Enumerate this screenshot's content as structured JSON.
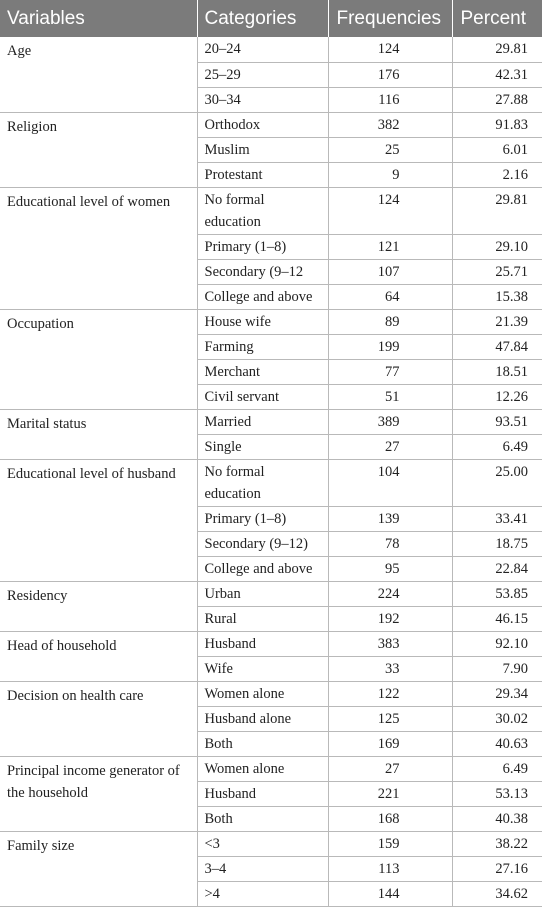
{
  "headers": [
    "Variables",
    "Categories",
    "Frequencies",
    "Percent"
  ],
  "groups": [
    {
      "variable": "Age",
      "rows": [
        {
          "category": "20–24",
          "frequency": "124",
          "percent": "29.81"
        },
        {
          "category": "25–29",
          "frequency": "176",
          "percent": "42.31"
        },
        {
          "category": "30–34",
          "frequency": "116",
          "percent": "27.88"
        }
      ]
    },
    {
      "variable": "Religion",
      "rows": [
        {
          "category": "Orthodox",
          "frequency": "382",
          "percent": "91.83"
        },
        {
          "category": "Muslim",
          "frequency": "25",
          "percent": "6.01"
        },
        {
          "category": "Protestant",
          "frequency": "9",
          "percent": "2.16"
        }
      ]
    },
    {
      "variable": "Educational level of women",
      "rows": [
        {
          "category": "No formal education",
          "frequency": "124",
          "percent": "29.81"
        },
        {
          "category": "Primary (1–8)",
          "frequency": "121",
          "percent": "29.10"
        },
        {
          "category": "Secondary (9–12",
          "frequency": "107",
          "percent": "25.71"
        },
        {
          "category": "College and above",
          "frequency": "64",
          "percent": "15.38"
        }
      ]
    },
    {
      "variable": "Occupation",
      "rows": [
        {
          "category": "House wife",
          "frequency": "89",
          "percent": "21.39"
        },
        {
          "category": "Farming",
          "frequency": "199",
          "percent": "47.84"
        },
        {
          "category": "Merchant",
          "frequency": "77",
          "percent": "18.51"
        },
        {
          "category": "Civil servant",
          "frequency": "51",
          "percent": "12.26"
        }
      ]
    },
    {
      "variable": "Marital status",
      "rows": [
        {
          "category": "Married",
          "frequency": "389",
          "percent": "93.51"
        },
        {
          "category": "Single",
          "frequency": "27",
          "percent": "6.49"
        }
      ]
    },
    {
      "variable": "Educational level of husband",
      "rows": [
        {
          "category": "No formal education",
          "frequency": "104",
          "percent": "25.00"
        },
        {
          "category": "Primary (1–8)",
          "frequency": "139",
          "percent": "33.41"
        },
        {
          "category": "Secondary (9–12)",
          "frequency": "78",
          "percent": "18.75"
        },
        {
          "category": "College and above",
          "frequency": "95",
          "percent": "22.84"
        }
      ]
    },
    {
      "variable": "Residency",
      "rows": [
        {
          "category": "Urban",
          "frequency": "224",
          "percent": "53.85"
        },
        {
          "category": "Rural",
          "frequency": "192",
          "percent": "46.15"
        }
      ]
    },
    {
      "variable": "Head of household",
      "rows": [
        {
          "category": "Husband",
          "frequency": "383",
          "percent": "92.10"
        },
        {
          "category": "Wife",
          "frequency": "33",
          "percent": "7.90"
        }
      ]
    },
    {
      "variable": "Decision on health care",
      "rows": [
        {
          "category": "Women alone",
          "frequency": "122",
          "percent": "29.34"
        },
        {
          "category": "Husband alone",
          "frequency": "125",
          "percent": "30.02"
        },
        {
          "category": "Both",
          "frequency": "169",
          "percent": "40.63"
        }
      ]
    },
    {
      "variable": "Principal income generator of the household",
      "rows": [
        {
          "category": "Women alone",
          "frequency": "27",
          "percent": "6.49"
        },
        {
          "category": "Husband",
          "frequency": "221",
          "percent": "53.13"
        },
        {
          "category": "Both",
          "frequency": "168",
          "percent": "40.38"
        }
      ]
    },
    {
      "variable": "Family size",
      "rows": [
        {
          "category": "<3",
          "frequency": "159",
          "percent": "38.22"
        },
        {
          "category": "3–4",
          "frequency": "113",
          "percent": "27.16"
        },
        {
          "category": ">4",
          "frequency": "144",
          "percent": "34.62"
        }
      ]
    }
  ]
}
